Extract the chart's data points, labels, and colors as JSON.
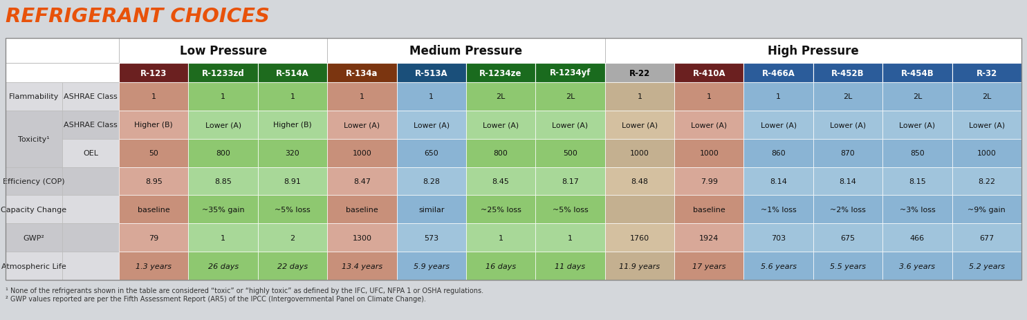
{
  "title": "REFRIGERANT CHOICES",
  "title_color": "#E8520A",
  "background_color": "#D4D7DB",
  "col_headers": [
    "R-123",
    "R-1233zd",
    "R-514A",
    "R-134a",
    "R-513A",
    "R-1234ze",
    "R-1234yf",
    "R-22",
    "R-410A",
    "R-466A",
    "R-452B",
    "R-454B",
    "R-32"
  ],
  "header_bg_colors": [
    "#6B2020",
    "#1E6B1E",
    "#1E6B1E",
    "#7B3510",
    "#1A4F7A",
    "#1A6B1E",
    "#1A6B1E",
    "#AAAAAA",
    "#6B2020",
    "#2B5C9A",
    "#2B5C9A",
    "#2B5C9A",
    "#2B5C9A"
  ],
  "header_text_colors": [
    "white",
    "white",
    "white",
    "white",
    "white",
    "white",
    "white",
    "black",
    "white",
    "white",
    "white",
    "white",
    "white"
  ],
  "pressure_groups": [
    {
      "label": "Low Pressure",
      "start": 0,
      "end": 3
    },
    {
      "label": "Medium Pressure",
      "start": 3,
      "end": 7
    },
    {
      "label": "High Pressure",
      "start": 7,
      "end": 13
    }
  ],
  "row_groups": [
    {
      "category": "Flammability",
      "rows": [
        {
          "sublabel": "ASHRAE Class",
          "values": [
            "1",
            "1",
            "1",
            "1",
            "1",
            "2L",
            "2L",
            "1",
            "1",
            "1",
            "2L",
            "2L",
            "2L"
          ],
          "italic": false
        }
      ]
    },
    {
      "category": "Toxicity¹",
      "rows": [
        {
          "sublabel": "ASHRAE Class",
          "values": [
            "Higher (B)",
            "Lower (A)",
            "Higher (B)",
            "Lower (A)",
            "Lower (A)",
            "Lower (A)",
            "Lower (A)",
            "Lower (A)",
            "Lower (A)",
            "Lower (A)",
            "Lower (A)",
            "Lower (A)",
            "Lower (A)"
          ],
          "italic": false
        },
        {
          "sublabel": "OEL",
          "values": [
            "50",
            "800",
            "320",
            "1000",
            "650",
            "800",
            "500",
            "1000",
            "1000",
            "860",
            "870",
            "850",
            "1000"
          ],
          "italic": false
        }
      ]
    },
    {
      "category": "Efficiency (COP)",
      "rows": [
        {
          "sublabel": "",
          "values": [
            "8.95",
            "8.85",
            "8.91",
            "8.47",
            "8.28",
            "8.45",
            "8.17",
            "8.48",
            "7.99",
            "8.14",
            "8.14",
            "8.15",
            "8.22"
          ],
          "italic": false
        }
      ]
    },
    {
      "category": "Capacity Change",
      "rows": [
        {
          "sublabel": "",
          "values": [
            "baseline",
            "~35% gain",
            "~5% loss",
            "baseline",
            "similar",
            "~25% loss",
            "~5% loss",
            "",
            "baseline",
            "~1% loss",
            "~2% loss",
            "~3% loss",
            "~9% gain"
          ],
          "italic": false
        }
      ]
    },
    {
      "category": "GWP²",
      "rows": [
        {
          "sublabel": "",
          "values": [
            "79",
            "1",
            "2",
            "1300",
            "573",
            "1",
            "1",
            "1760",
            "1924",
            "703",
            "675",
            "466",
            "677"
          ],
          "italic": false
        }
      ]
    },
    {
      "category": "Atmospheric Life",
      "rows": [
        {
          "sublabel": "",
          "values": [
            "1.3 years",
            "26 days",
            "22 days",
            "13.4 years",
            "5.9 years",
            "16 days",
            "11 days",
            "11.9 years",
            "17 years",
            "5.6 years",
            "5.5 years",
            "3.6 years",
            "5.2 years"
          ],
          "italic": true
        }
      ]
    }
  ],
  "col_cell_colors": {
    "even": [
      "#C8907A",
      "#8EC870",
      "#8EC870",
      "#C8907A",
      "#8AB4D4",
      "#8EC870",
      "#8EC870",
      "#C4B090",
      "#C8907A",
      "#8AB4D4",
      "#8AB4D4",
      "#8AB4D4",
      "#8AB4D4"
    ],
    "odd": [
      "#D8A898",
      "#A8D898",
      "#A8D898",
      "#D8A898",
      "#A0C4DC",
      "#A8D898",
      "#A8D898",
      "#D4C0A0",
      "#D8A898",
      "#A0C4DC",
      "#A0C4DC",
      "#A0C4DC",
      "#A0C4DC"
    ]
  },
  "label_bg_even": "#DCDCE0",
  "label_bg_odd": "#C8C8CC",
  "footnote1": "¹ None of the refrigerants shown in the table are considered “toxic” or “highly toxic” as defined by the IFC, UFC, NFPA 1 or OSHA regulations.",
  "footnote2": "² GWP values reported are per the Fifth Assessment Report (AR5) of the IPCC (Intergovernmental Panel on Climate Change)."
}
